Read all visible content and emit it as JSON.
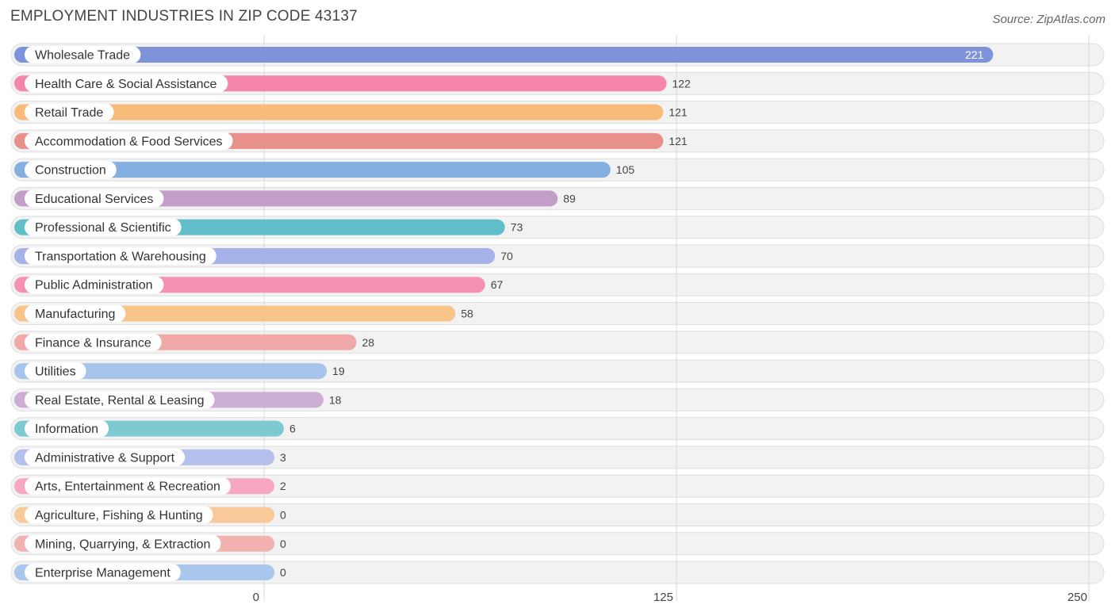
{
  "chart_data": {
    "type": "bar",
    "orientation": "horizontal",
    "title": "EMPLOYMENT INDUSTRIES IN ZIP CODE 43137",
    "source": "Source: ZipAtlas.com",
    "xlim": [
      0,
      250
    ],
    "xticks": [
      0,
      125,
      250
    ],
    "grid": true,
    "categories": [
      "Wholesale Trade",
      "Health Care & Social Assistance",
      "Retail Trade",
      "Accommodation & Food Services",
      "Construction",
      "Educational Services",
      "Professional & Scientific",
      "Transportation & Warehousing",
      "Public Administration",
      "Manufacturing",
      "Finance & Insurance",
      "Utilities",
      "Real Estate, Rental & Leasing",
      "Information",
      "Administrative & Support",
      "Arts, Entertainment & Recreation",
      "Agriculture, Fishing & Hunting",
      "Mining, Quarrying, & Extraction",
      "Enterprise Management"
    ],
    "values": [
      221,
      122,
      121,
      121,
      105,
      89,
      73,
      70,
      67,
      58,
      28,
      19,
      18,
      6,
      3,
      2,
      0,
      0,
      0
    ],
    "colors": [
      "#7f93db",
      "#f585a9",
      "#f8bb79",
      "#e8918a",
      "#86afe1",
      "#c39ec8",
      "#60bfc9",
      "#a5b3e8",
      "#f592b3",
      "#f9c48a",
      "#f0a9a6",
      "#a7c5eb",
      "#cdaed3",
      "#7dcad1",
      "#b4bfeb",
      "#f7a7c2",
      "#f9c999",
      "#f2b2b1",
      "#a9c6ec"
    ]
  }
}
